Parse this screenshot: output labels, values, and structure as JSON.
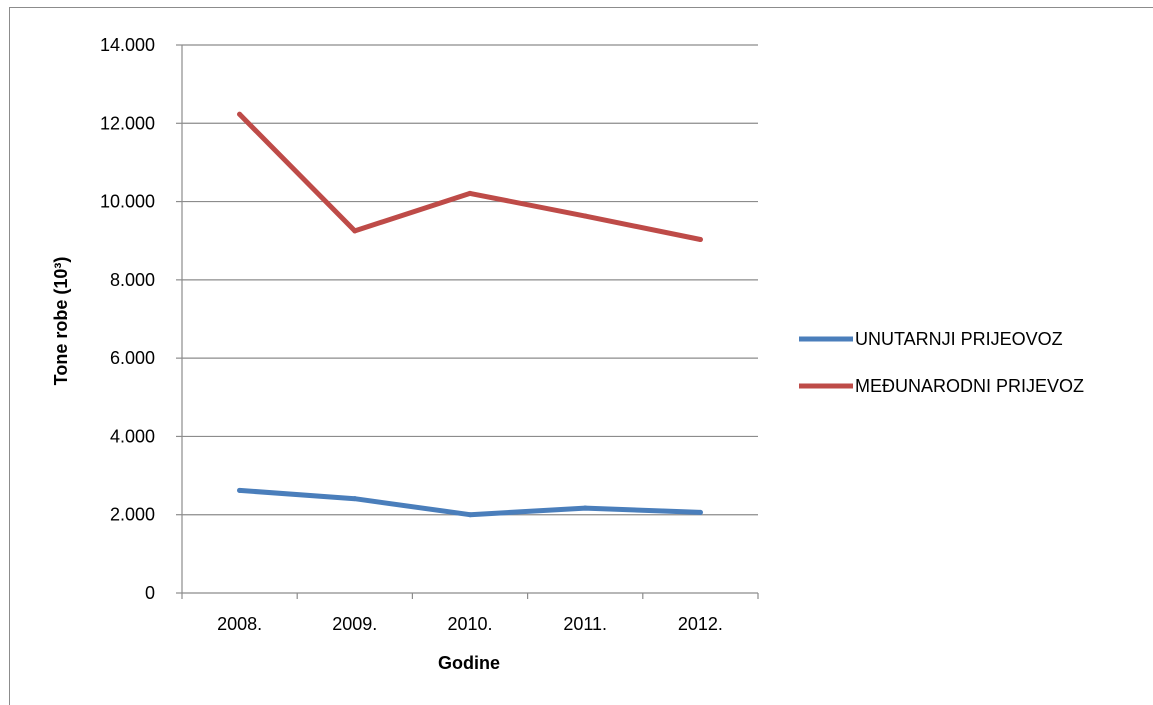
{
  "chart_data": {
    "type": "line",
    "categories": [
      "2008.",
      "2009.",
      "2010.",
      "2011.",
      "2012."
    ],
    "series": [
      {
        "name": "UNUTARNJI PRIJEOVOZ",
        "color": "#4a7ebb",
        "values": [
          2620,
          2410,
          2000,
          2170,
          2060
        ]
      },
      {
        "name": "MEĐUNARODNI PRIJEVOZ",
        "color": "#be4b48",
        "values": [
          12230,
          9250,
          10210,
          9630,
          9030
        ]
      }
    ],
    "xlabel": "Godine",
    "ylabel": "Tone robe (10³)",
    "ylim": [
      0,
      14000
    ],
    "y_ticks": [
      {
        "value": 0,
        "label": "0"
      },
      {
        "value": 2000,
        "label": "2.000"
      },
      {
        "value": 4000,
        "label": "4.000"
      },
      {
        "value": 6000,
        "label": "6.000"
      },
      {
        "value": 8000,
        "label": "8.000"
      },
      {
        "value": 10000,
        "label": "10.000"
      },
      {
        "value": 12000,
        "label": "12.000"
      },
      {
        "value": 14000,
        "label": "14.000"
      }
    ],
    "grid": true,
    "legend_position": "right"
  }
}
